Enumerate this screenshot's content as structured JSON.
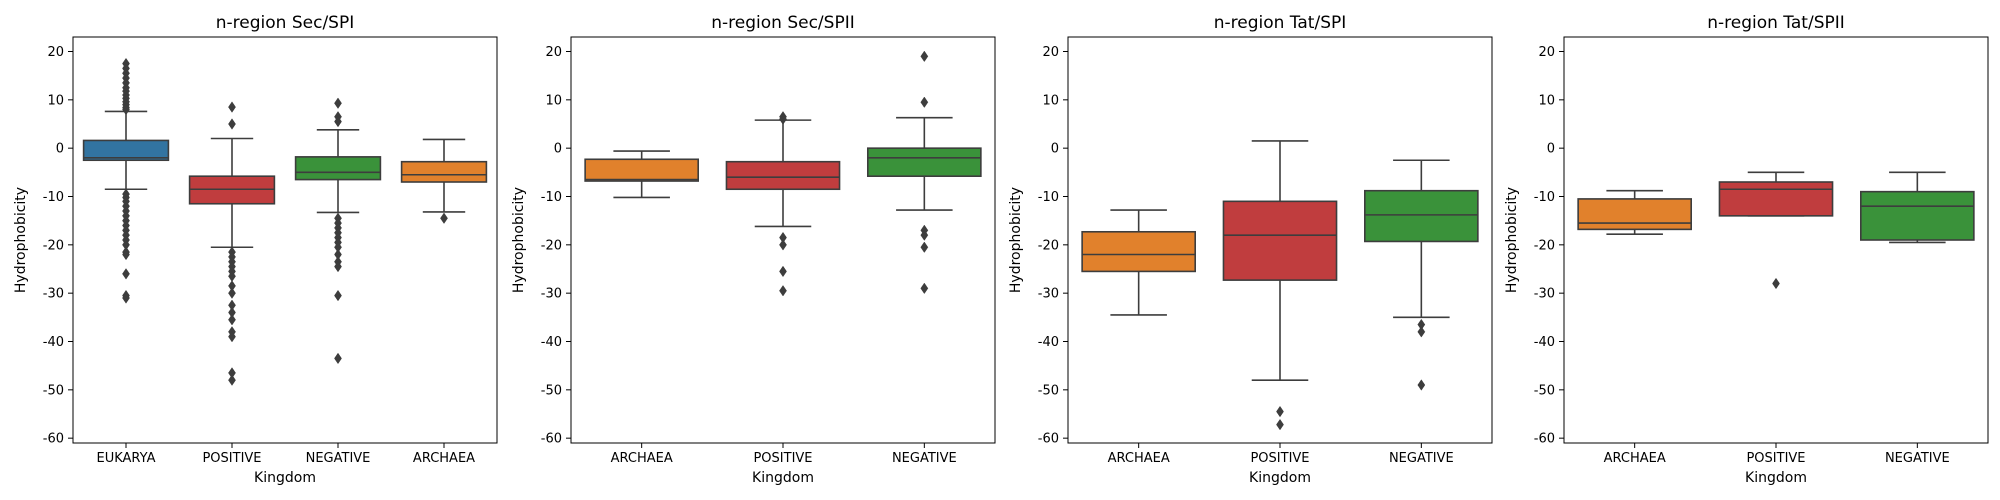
{
  "chart_data": [
    {
      "type": "box",
      "title": "n-region Sec/SPI",
      "xlabel": "Kingdom",
      "ylabel": "Hydrophobicity",
      "ylim": [
        -61,
        23
      ],
      "yticks": [
        20,
        10,
        0,
        -10,
        -20,
        -30,
        -40,
        -50,
        -60
      ],
      "grid": false,
      "categories": [
        "EUKARYA",
        "POSITIVE",
        "NEGATIVE",
        "ARCHAEA"
      ],
      "boxes": [
        {
          "category": "EUKARYA",
          "color": "#3274a1",
          "whisker_low": -8.5,
          "q1": -2.5,
          "median": -2,
          "q3": 1.6,
          "whisker_high": 7.6,
          "outliers": [
            17.5,
            16.5,
            15.5,
            14.5,
            13.5,
            12.5,
            11.8,
            11,
            10.3,
            9.6,
            9,
            8.4,
            8,
            -9.5,
            -10.2,
            -11,
            -12,
            -13,
            -14,
            -15,
            -16,
            -17,
            -18,
            -19,
            -20,
            -21.5,
            -22,
            -26,
            -30.5,
            -31
          ]
        },
        {
          "category": "POSITIVE",
          "color": "#c03d3e",
          "whisker_low": -20.5,
          "q1": -11.5,
          "median": -8.5,
          "q3": -5.8,
          "whisker_high": 2,
          "outliers": [
            8.5,
            5,
            -21.5,
            -22.5,
            -23.5,
            -24.5,
            -25.5,
            -26.5,
            -28.5,
            -30,
            -32.5,
            -34,
            -35.5,
            -38,
            -39,
            -46.5,
            -48
          ]
        },
        {
          "category": "NEGATIVE",
          "color": "#3a923a",
          "whisker_low": -13.3,
          "q1": -6.5,
          "median": -5,
          "q3": -1.8,
          "whisker_high": 3.8,
          "outliers": [
            9.3,
            6.5,
            5.5,
            -14.5,
            -15.5,
            -16.5,
            -17.5,
            -18.5,
            -19.5,
            -20.5,
            -22,
            -23.5,
            -24.5,
            -30.5,
            -43.5
          ]
        },
        {
          "category": "ARCHAEA",
          "color": "#e1812c",
          "whisker_low": -13.2,
          "q1": -7,
          "median": -5.5,
          "q3": -2.8,
          "whisker_high": 1.8,
          "outliers": [
            -14.5
          ]
        }
      ]
    },
    {
      "type": "box",
      "title": "n-region Sec/SPII",
      "xlabel": "Kingdom",
      "ylabel": "Hydrophobicity",
      "ylim": [
        -61,
        23
      ],
      "yticks": [
        20,
        10,
        0,
        -10,
        -20,
        -30,
        -40,
        -50,
        -60
      ],
      "grid": false,
      "categories": [
        "ARCHAEA",
        "POSITIVE",
        "NEGATIVE"
      ],
      "boxes": [
        {
          "category": "ARCHAEA",
          "color": "#e1812c",
          "whisker_low": -10.2,
          "q1": -6.8,
          "median": -6.5,
          "q3": -2.3,
          "whisker_high": -0.6,
          "outliers": []
        },
        {
          "category": "POSITIVE",
          "color": "#c03d3e",
          "whisker_low": -16.2,
          "q1": -8.5,
          "median": -6,
          "q3": -2.8,
          "whisker_high": 5.8,
          "outliers": [
            6.5,
            6,
            -18.5,
            -20,
            -25.5,
            -29.5
          ]
        },
        {
          "category": "NEGATIVE",
          "color": "#3a923a",
          "whisker_low": -12.8,
          "q1": -5.8,
          "median": -2,
          "q3": 0,
          "whisker_high": 6.3,
          "outliers": [
            19,
            9.5,
            -17,
            -18,
            -20.5,
            -29
          ]
        }
      ]
    },
    {
      "type": "box",
      "title": "n-region Tat/SPI",
      "xlabel": "Kingdom",
      "ylabel": "Hydrophobicity",
      "ylim": [
        -61,
        23
      ],
      "yticks": [
        20,
        10,
        0,
        -10,
        -20,
        -30,
        -40,
        -50,
        -60
      ],
      "grid": false,
      "categories": [
        "ARCHAEA",
        "POSITIVE",
        "NEGATIVE"
      ],
      "boxes": [
        {
          "category": "ARCHAEA",
          "color": "#e1812c",
          "whisker_low": -34.5,
          "q1": -25.5,
          "median": -22,
          "q3": -17.3,
          "whisker_high": -12.8,
          "outliers": []
        },
        {
          "category": "POSITIVE",
          "color": "#c03d3e",
          "whisker_low": -48,
          "q1": -27.3,
          "median": -18,
          "q3": -11,
          "whisker_high": 1.5,
          "outliers": [
            -54.5,
            -57.2
          ]
        },
        {
          "category": "NEGATIVE",
          "color": "#3a923a",
          "whisker_low": -35,
          "q1": -19.3,
          "median": -13.8,
          "q3": -8.8,
          "whisker_high": -2.5,
          "outliers": [
            -36.5,
            -38,
            -49
          ]
        }
      ]
    },
    {
      "type": "box",
      "title": "n-region Tat/SPII",
      "xlabel": "Kingdom",
      "ylabel": "Hydrophobicity",
      "ylim": [
        -61,
        23
      ],
      "yticks": [
        20,
        10,
        0,
        -10,
        -20,
        -30,
        -40,
        -50,
        -60
      ],
      "grid": false,
      "categories": [
        "ARCHAEA",
        "POSITIVE",
        "NEGATIVE"
      ],
      "boxes": [
        {
          "category": "ARCHAEA",
          "color": "#e1812c",
          "whisker_low": -17.8,
          "q1": -16.8,
          "median": -15.5,
          "q3": -10.5,
          "whisker_high": -8.8,
          "outliers": []
        },
        {
          "category": "POSITIVE",
          "color": "#c03d3e",
          "whisker_low": -14,
          "q1": -14,
          "median": -8.5,
          "q3": -7,
          "whisker_high": -5,
          "outliers": [
            -28
          ]
        },
        {
          "category": "NEGATIVE",
          "color": "#3a923a",
          "whisker_low": -19.5,
          "q1": -19,
          "median": -12,
          "q3": -9,
          "whisker_high": -5,
          "outliers": []
        }
      ]
    }
  ]
}
